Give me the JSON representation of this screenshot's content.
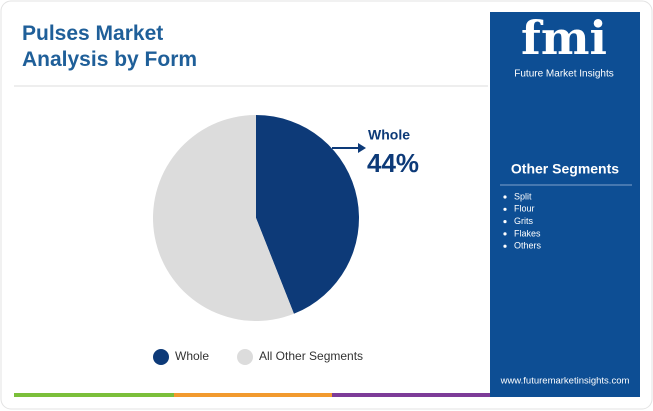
{
  "chart_data": {
    "type": "pie",
    "title": "Pulses Market Analysis by Form",
    "categories": [
      "Whole",
      "All Other Segments"
    ],
    "values": [
      44,
      56
    ],
    "value_labels": [
      "44%",
      null
    ],
    "colors": [
      "#0d3a78",
      "#dcdcdc"
    ]
  },
  "sidebar": {
    "brand": "fmi",
    "brand_name": "Future Market Insights",
    "heading": "Other Segments",
    "items": [
      "Split",
      "Flour",
      "Grits",
      "Flakes",
      "Others"
    ],
    "url": "www.futuremarketinsights.com"
  }
}
